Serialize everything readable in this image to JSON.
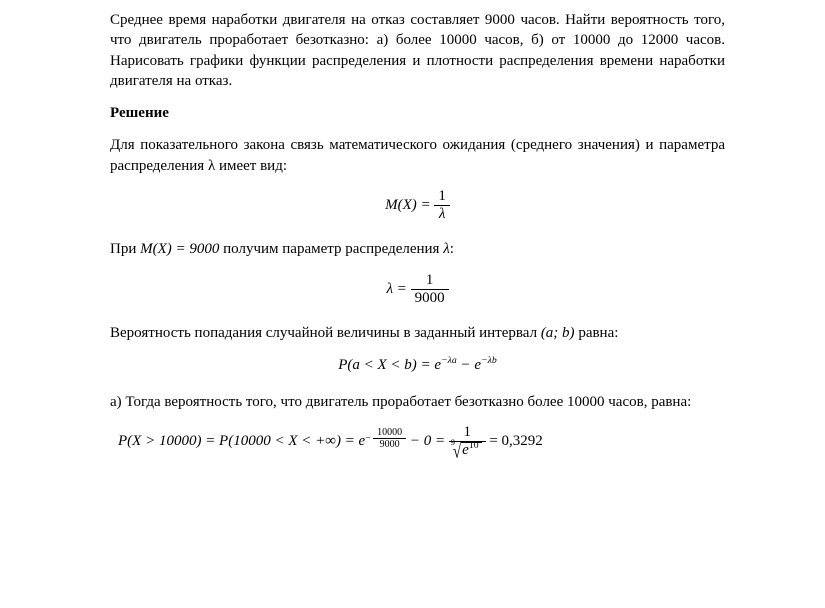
{
  "p1": "Среднее время наработки двигателя на отказ составляет 9000 часов. Найти вероятность того, что двигатель проработает безотказно: а) более 10000 часов, б) от 10000 до 12000 часов. Нарисовать графики функции распределения и плотности распределения времени наработки двигателя на отказ.",
  "heading": "Решение",
  "p2": "Для показательного закона связь математического ожидания (среднего значения) и параметра распределения λ имеет вид:",
  "eq1": {
    "lhs": "M(X) =",
    "num": "1",
    "den": "λ"
  },
  "p3_a": "При ",
  "p3_mx": "M(X) = 9000",
  "p3_b": " получим параметр распределения ",
  "p3_lam": "λ",
  "p3_c": ":",
  "eq2": {
    "lhs": "λ =",
    "num": "1",
    "den": "9000"
  },
  "p4_a": "Вероятность попадания случайной величины в заданный интервал ",
  "p4_int": "(a; b)",
  "p4_b": " равна:",
  "eq3": "P(a < X < b) = e⁻ᵠᵃ − e⁻ᵠᵇ",
  "eq3_lhs": "P",
  "eq3_paren": "(a < X < b) = e",
  "eq3_exp1": "−λa",
  "eq3_mid": " − e",
  "eq3_exp2": "−λb",
  "p5": "а) Тогда вероятность того, что двигатель проработает безотказно более 10000 часов, равна:",
  "eq4": {
    "lhs": "P(X > 10000) = P(10000 < X < +∞) = e",
    "exp_num": "10000",
    "exp_den": "9000",
    "mid": " − 0 = ",
    "frac_num": "1",
    "root_index": "9",
    "root_rad": "e",
    "root_exp": "10",
    "rhs": " = 0,3292"
  }
}
